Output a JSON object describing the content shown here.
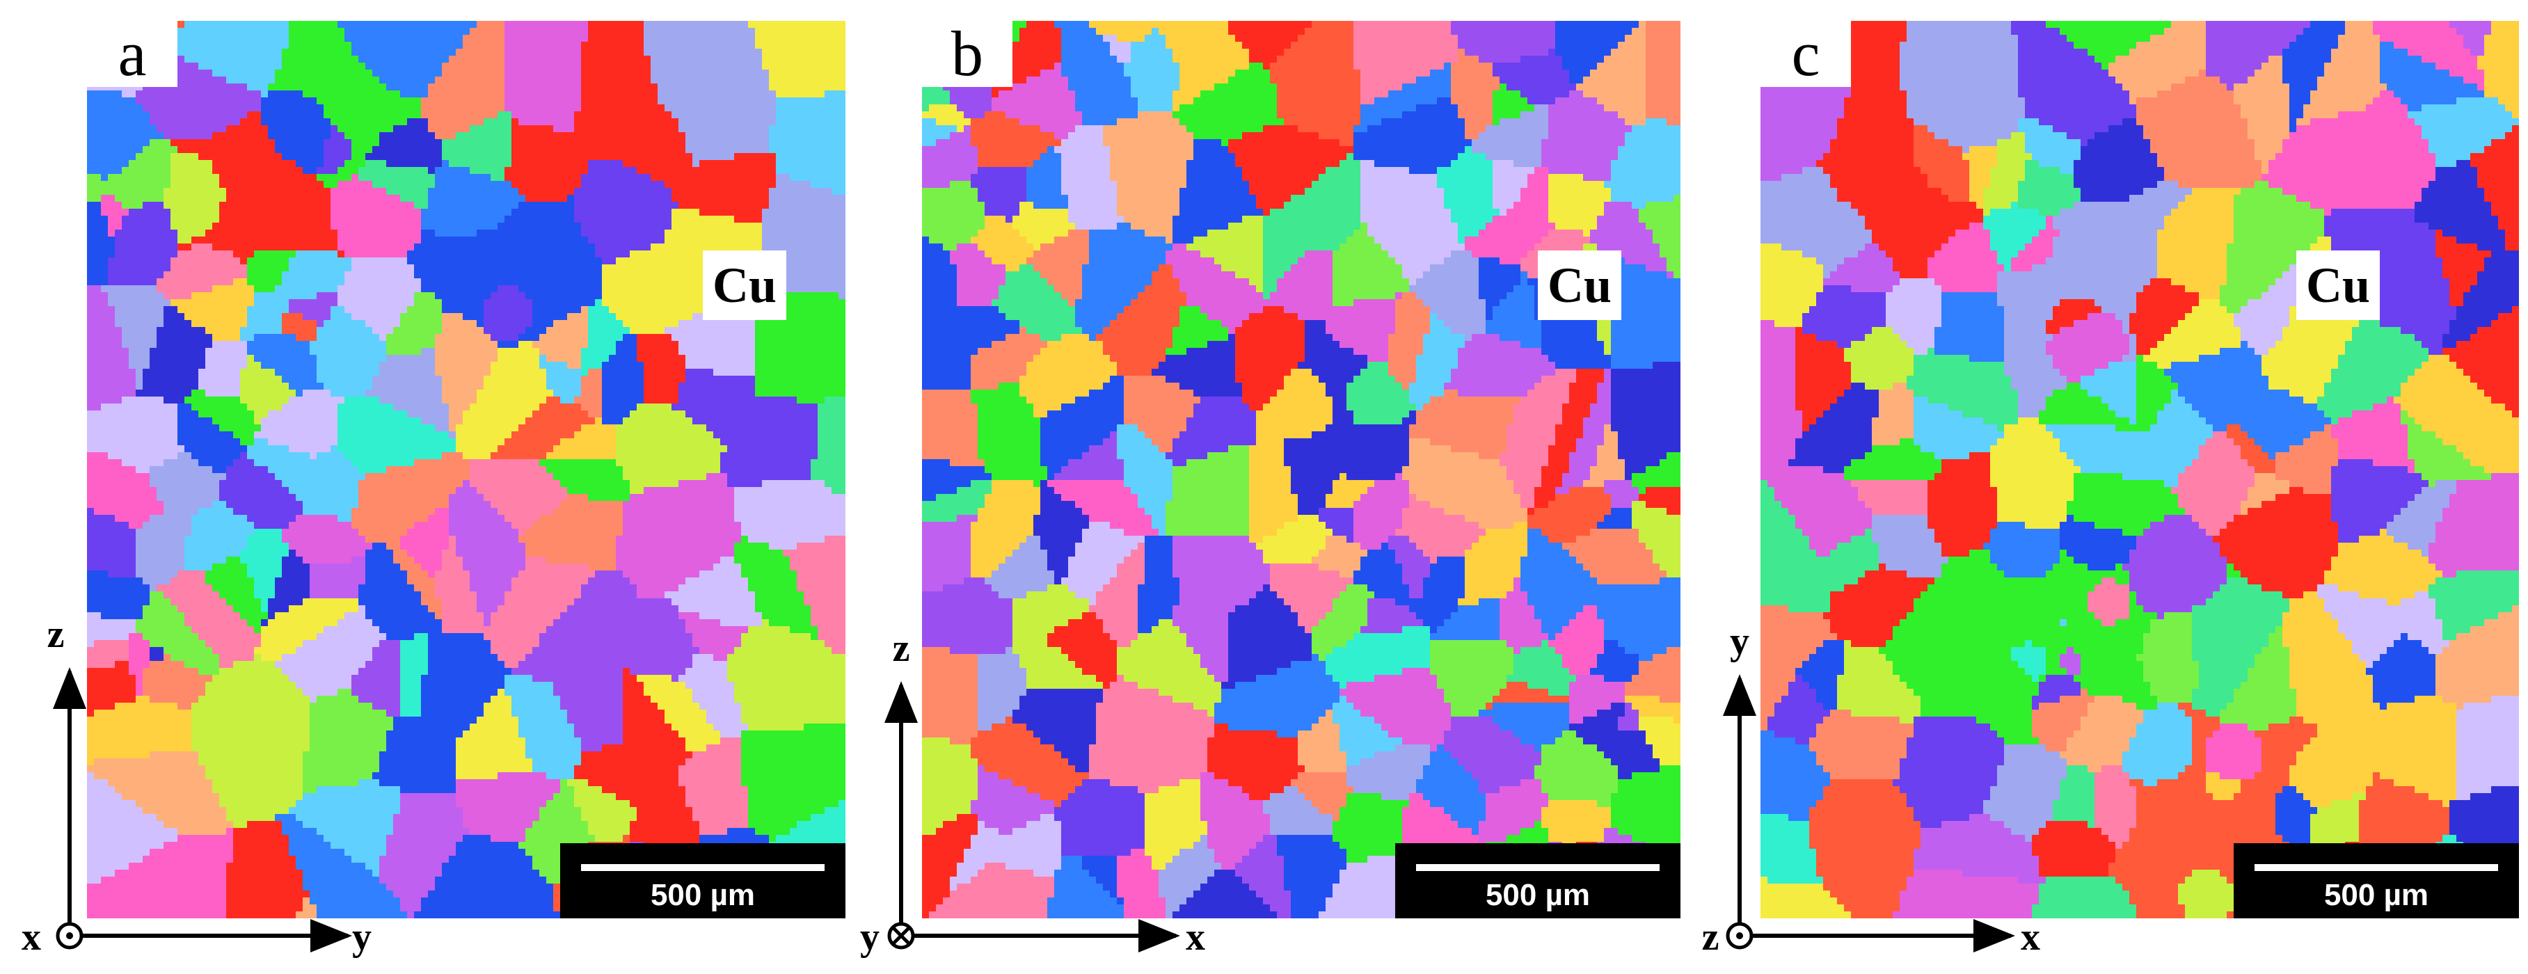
{
  "figure": {
    "panels": [
      {
        "letter": "a",
        "material": "Cu",
        "scale_bar": "500 µm",
        "axes": {
          "vertical": "z",
          "horizontal": "y",
          "out_of_plane": "x",
          "out_of_plane_symbol": "dot"
        }
      },
      {
        "letter": "b",
        "material": "Cu",
        "scale_bar": "500 µm",
        "axes": {
          "vertical": "z",
          "horizontal": "x",
          "out_of_plane": "y",
          "out_of_plane_symbol": "cross"
        }
      },
      {
        "letter": "c",
        "material": "Cu",
        "scale_bar": "500 µm",
        "axes": {
          "vertical": "y",
          "horizontal": "x",
          "out_of_plane": "z",
          "out_of_plane_symbol": "dot"
        }
      }
    ],
    "orientation_colors": [
      "#ff2a1f",
      "#ff5a3a",
      "#ff8a6a",
      "#ffb07a",
      "#ffd040",
      "#f4ec40",
      "#c8f040",
      "#78f048",
      "#2ff02a",
      "#40e890",
      "#30f0d0",
      "#60d0ff",
      "#3080ff",
      "#2050f0",
      "#3030d8",
      "#6a40f0",
      "#9a50f0",
      "#c060f0",
      "#e060e0",
      "#ff60c8",
      "#ff80a8",
      "#a0a8f0",
      "#d0c0ff"
    ]
  }
}
